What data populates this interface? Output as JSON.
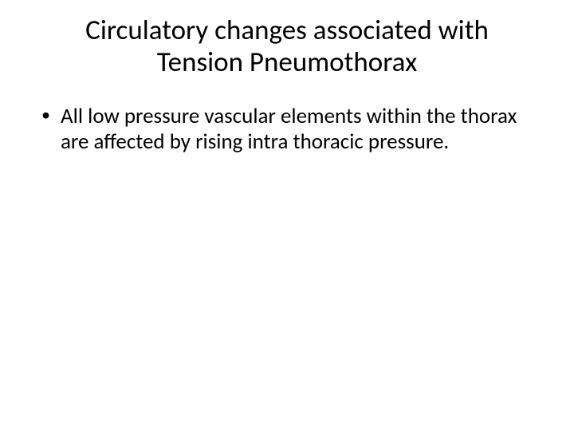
{
  "slide": {
    "background_color": "#ffffff",
    "text_color": "#000000",
    "title": {
      "line1": "Circulatory changes associated with",
      "line2": "Tension Pneumothorax",
      "font_size_pt": 35,
      "font_weight": 400,
      "align": "center"
    },
    "bullets": [
      {
        "text": "All low pressure vascular elements  within the thorax are affected by rising intra thoracic pressure.",
        "font_size_pt": 27
      }
    ]
  }
}
